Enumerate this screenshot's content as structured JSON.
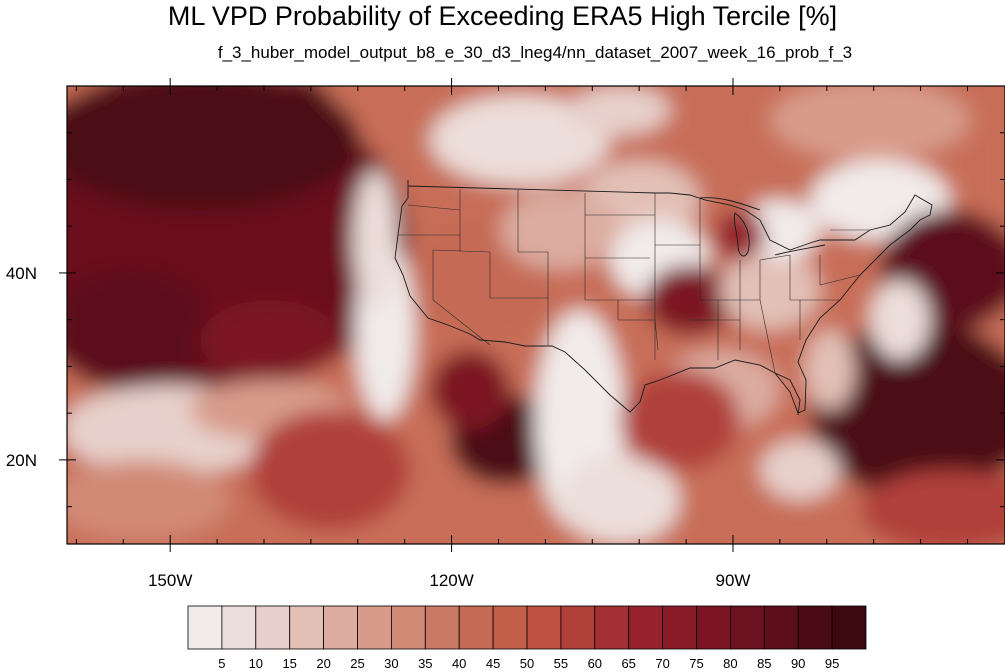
{
  "header": {
    "title": "ML VPD Probability of Exceeding ERA5 High Tercile [%]",
    "subtitle": "f_3_huber_model_output_b8_e_30_d3_lneg4/nn_dataset_2007_week_16_prob_f_3"
  },
  "map": {
    "lon_range": [
      -161,
      -61
    ],
    "lat_range": [
      11,
      60
    ],
    "x_ticks": [
      {
        "lon": -150,
        "label": "150W"
      },
      {
        "lon": -120,
        "label": "120W"
      },
      {
        "lon": -90,
        "label": "90W"
      }
    ],
    "y_ticks": [
      {
        "lat": 40,
        "label": "40N"
      },
      {
        "lat": 20,
        "label": "20N"
      }
    ]
  },
  "colorbar": {
    "labels": [
      "5",
      "10",
      "15",
      "20",
      "25",
      "30",
      "35",
      "40",
      "45",
      "50",
      "55",
      "60",
      "65",
      "70",
      "75",
      "80",
      "85",
      "90",
      "95"
    ],
    "colors": [
      "#f1ebea",
      "#ecdeda",
      "#e7d0cb",
      "#e2c0b6",
      "#dcaca0",
      "#d89b8a",
      "#d18a76",
      "#ca7964",
      "#c56a55",
      "#c15f48",
      "#bd5040",
      "#b0403a",
      "#a33032",
      "#95222c",
      "#891a28",
      "#7c1523",
      "#6c111f",
      "#5c0e1a",
      "#4b0b15",
      "#3c0910"
    ]
  },
  "chart_data": {
    "type": "heatmap",
    "title": "ML VPD Probability of Exceeding ERA5 High Tercile [%]",
    "subtitle": "f_3_huber_model_output_b8_e_30_d3_lneg4/nn_dataset_2007_week_16_prob_f_3",
    "x_range": [
      -161,
      -61
    ],
    "y_range": [
      11,
      60
    ],
    "x_tick_labels": [
      "150W",
      "120W",
      "90W"
    ],
    "y_tick_labels": [
      "40N",
      "20N"
    ],
    "colorbar_levels": [
      5,
      10,
      15,
      20,
      25,
      30,
      35,
      40,
      45,
      50,
      55,
      60,
      65,
      70,
      75,
      80,
      85,
      90,
      95
    ],
    "regions": [
      {
        "lon": -140,
        "lat": 40,
        "prob": 90
      },
      {
        "lon": -152,
        "lat": 50,
        "prob": 95
      },
      {
        "lon": -145,
        "lat": 55,
        "prob": 95
      },
      {
        "lon": -130,
        "lat": 35,
        "prob": 75
      },
      {
        "lon": -155,
        "lat": 28,
        "prob": 55
      },
      {
        "lon": -122,
        "lat": 34,
        "prob": 5
      },
      {
        "lon": -125,
        "lat": 45,
        "prob": 20
      },
      {
        "lon": -113,
        "lat": 20,
        "prob": 90
      },
      {
        "lon": -106,
        "lat": 20,
        "prob": 5
      },
      {
        "lon": -112,
        "lat": 40,
        "prob": 40
      },
      {
        "lon": -105,
        "lat": 45,
        "prob": 30
      },
      {
        "lon": -90,
        "lat": 42,
        "prob": 10
      },
      {
        "lon": -94,
        "lat": 36,
        "prob": 70
      },
      {
        "lon": -82,
        "lat": 35,
        "prob": 25
      },
      {
        "lon": -90,
        "lat": 26,
        "prob": 50
      },
      {
        "lon": -72,
        "lat": 25,
        "prob": 90
      },
      {
        "lon": -66,
        "lat": 40,
        "prob": 90
      },
      {
        "lon": -80,
        "lat": 50,
        "prob": 30
      },
      {
        "lon": -115,
        "lat": 55,
        "prob": 15
      },
      {
        "lon": -92,
        "lat": 15,
        "prob": 30
      }
    ]
  }
}
